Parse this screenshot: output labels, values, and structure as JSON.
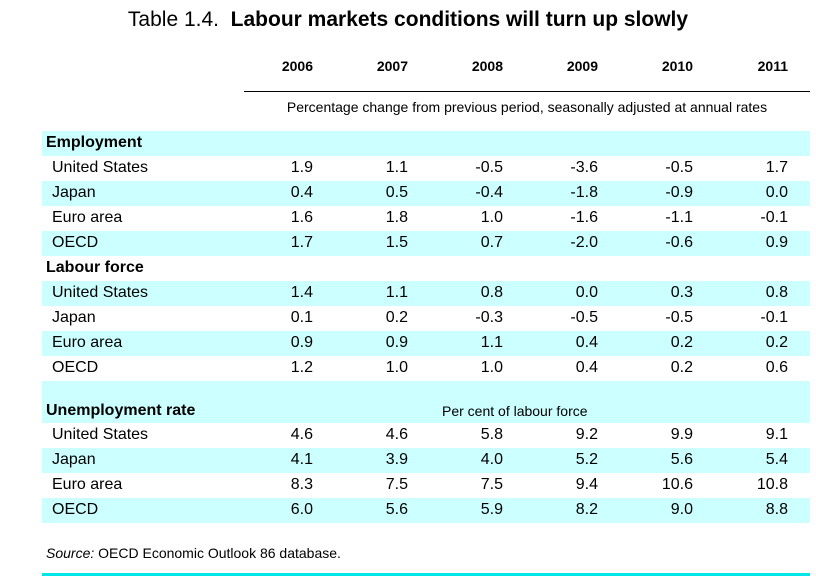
{
  "title": {
    "number": "Table 1.4.",
    "text": "Labour markets conditions will turn up slowly"
  },
  "years": [
    "2006",
    "2007",
    "2008",
    "2009",
    "2010",
    "2011"
  ],
  "subheader": "Percentage change from previous period, seasonally adjusted at annual rates",
  "sections": {
    "employment": {
      "label": "Employment",
      "rows": [
        {
          "label": "United States",
          "values": [
            "1.9",
            "1.1",
            "-0.5",
            "-3.6",
            "-0.5",
            "1.7"
          ]
        },
        {
          "label": "Japan",
          "values": [
            "0.4",
            "0.5",
            "-0.4",
            "-1.8",
            "-0.9",
            "0.0"
          ]
        },
        {
          "label": "Euro area",
          "values": [
            "1.6",
            "1.8",
            "1.0",
            "-1.6",
            "-1.1",
            "-0.1"
          ]
        },
        {
          "label": "OECD",
          "values": [
            "1.7",
            "1.5",
            "0.7",
            "-2.0",
            "-0.6",
            "0.9"
          ]
        }
      ]
    },
    "labour_force": {
      "label": "Labour force",
      "rows": [
        {
          "label": "United States",
          "values": [
            "1.4",
            "1.1",
            "0.8",
            "0.0",
            "0.3",
            "0.8"
          ]
        },
        {
          "label": "Japan",
          "values": [
            "0.1",
            "0.2",
            "-0.3",
            "-0.5",
            "-0.5",
            "-0.1"
          ]
        },
        {
          "label": "Euro area",
          "values": [
            "0.9",
            "0.9",
            "1.1",
            "0.4",
            "0.2",
            "0.2"
          ]
        },
        {
          "label": "OECD",
          "values": [
            "1.2",
            "1.0",
            "1.0",
            "0.4",
            "0.2",
            "0.6"
          ]
        }
      ]
    },
    "unemployment": {
      "label": "Unemployment rate",
      "note": "Per cent of labour force",
      "rows": [
        {
          "label": "United States",
          "values": [
            "4.6",
            "4.6",
            "5.8",
            "9.2",
            "9.9",
            "9.1"
          ]
        },
        {
          "label": "Japan",
          "values": [
            "4.1",
            "3.9",
            "4.0",
            "5.2",
            "5.6",
            "5.4"
          ]
        },
        {
          "label": "Euro area",
          "values": [
            "8.3",
            "7.5",
            "7.5",
            "9.4",
            "10.6",
            "10.8"
          ]
        },
        {
          "label": "OECD",
          "values": [
            "6.0",
            "5.6",
            "5.9",
            "8.2",
            "9.0",
            "8.8"
          ]
        }
      ]
    }
  },
  "source": {
    "label": "Source:",
    "text": "OECD Economic Outlook 86 database."
  },
  "colors": {
    "shade": "#ccffff",
    "rule": "#00e5e5"
  }
}
